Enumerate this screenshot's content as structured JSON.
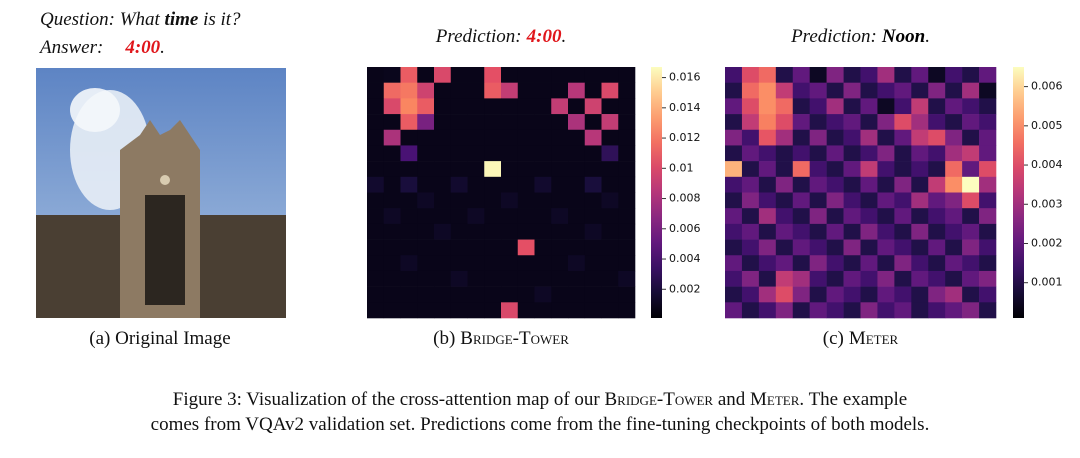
{
  "question": {
    "label": "Question:",
    "before": "What",
    "keyword": "time",
    "after": "is it?"
  },
  "answer": {
    "label": "Answer:",
    "value": "4:00",
    "end": "."
  },
  "original_caption": "(a) Original Image",
  "heatmaps": [
    {
      "prediction_label": "Prediction:",
      "prediction": "4:00",
      "prediction_color": "#e0161b",
      "end": ".",
      "caption_prefix": "(b)",
      "caption_model": "Bridge-Tower",
      "clim": [
        0.0001,
        0.0167
      ],
      "colorbar_ticks": [
        0.002,
        0.004,
        0.006,
        0.008,
        0.01,
        0.012,
        0.014,
        0.016
      ],
      "values": [
        [
          0.0008,
          0.0009,
          0.011,
          0.0008,
          0.01,
          0.0008,
          0.0008,
          0.0105,
          0.0008,
          0.0008,
          0.0008,
          0.0008,
          0.0008,
          0.0008,
          0.0008,
          0.0008
        ],
        [
          0.0008,
          0.0115,
          0.012,
          0.0095,
          0.0008,
          0.0008,
          0.0008,
          0.011,
          0.009,
          0.0008,
          0.0008,
          0.0008,
          0.0085,
          0.0008,
          0.01,
          0.0008
        ],
        [
          0.0008,
          0.01,
          0.0125,
          0.011,
          0.0008,
          0.0008,
          0.0008,
          0.0008,
          0.0008,
          0.0008,
          0.0008,
          0.009,
          0.0008,
          0.0095,
          0.0008,
          0.0008
        ],
        [
          0.0008,
          0.0008,
          0.011,
          0.006,
          0.0008,
          0.0008,
          0.0008,
          0.0008,
          0.0008,
          0.0008,
          0.0008,
          0.0008,
          0.008,
          0.0008,
          0.009,
          0.0008
        ],
        [
          0.0008,
          0.008,
          0.0008,
          0.0008,
          0.0008,
          0.0008,
          0.0008,
          0.0008,
          0.0008,
          0.0008,
          0.0008,
          0.0008,
          0.0008,
          0.0085,
          0.0008,
          0.0008
        ],
        [
          0.0008,
          0.0008,
          0.004,
          0.0008,
          0.0008,
          0.0008,
          0.0008,
          0.0008,
          0.0008,
          0.0008,
          0.0008,
          0.0008,
          0.0008,
          0.0008,
          0.003,
          0.0008
        ],
        [
          0.0008,
          0.0008,
          0.0008,
          0.0008,
          0.0008,
          0.0008,
          0.0008,
          0.0165,
          0.0008,
          0.0008,
          0.0008,
          0.0008,
          0.0008,
          0.0008,
          0.0008,
          0.0008
        ],
        [
          0.0015,
          0.0008,
          0.002,
          0.0008,
          0.0008,
          0.0015,
          0.0008,
          0.0008,
          0.0008,
          0.0008,
          0.0015,
          0.0008,
          0.0008,
          0.002,
          0.0008,
          0.0008
        ],
        [
          0.0008,
          0.0008,
          0.0008,
          0.0012,
          0.0008,
          0.0008,
          0.0008,
          0.0008,
          0.0012,
          0.0008,
          0.0008,
          0.0008,
          0.0008,
          0.0008,
          0.0012,
          0.0008
        ],
        [
          0.0008,
          0.0012,
          0.0008,
          0.0008,
          0.0008,
          0.0008,
          0.0012,
          0.0008,
          0.0008,
          0.0008,
          0.0008,
          0.0012,
          0.0008,
          0.0008,
          0.0008,
          0.0008
        ],
        [
          0.0008,
          0.0008,
          0.0008,
          0.0008,
          0.0012,
          0.0008,
          0.0008,
          0.0008,
          0.0008,
          0.0008,
          0.0008,
          0.0008,
          0.0008,
          0.0012,
          0.0008,
          0.0008
        ],
        [
          0.0008,
          0.0008,
          0.0008,
          0.0008,
          0.0008,
          0.0008,
          0.0008,
          0.0008,
          0.0008,
          0.0105,
          0.0008,
          0.0008,
          0.0008,
          0.0008,
          0.0008,
          0.0008
        ],
        [
          0.0008,
          0.0008,
          0.0012,
          0.0008,
          0.0008,
          0.0008,
          0.0008,
          0.0008,
          0.0008,
          0.0008,
          0.0008,
          0.0008,
          0.0012,
          0.0008,
          0.0008,
          0.0008
        ],
        [
          0.0008,
          0.0008,
          0.0008,
          0.0008,
          0.0008,
          0.0012,
          0.0008,
          0.0008,
          0.0008,
          0.0008,
          0.0008,
          0.0008,
          0.0008,
          0.0008,
          0.0008,
          0.0012
        ],
        [
          0.0008,
          0.0008,
          0.0008,
          0.0008,
          0.0008,
          0.0008,
          0.0008,
          0.0008,
          0.0008,
          0.0008,
          0.0012,
          0.0008,
          0.0008,
          0.0008,
          0.0008,
          0.0008
        ],
        [
          0.0008,
          0.0008,
          0.0008,
          0.0008,
          0.0008,
          0.0008,
          0.0008,
          0.0008,
          0.01,
          0.0008,
          0.0008,
          0.0008,
          0.0008,
          0.0008,
          0.0008,
          0.0008
        ]
      ]
    },
    {
      "prediction_label": "Prediction:",
      "prediction": "Noon",
      "prediction_color": "#000000",
      "end": ".",
      "caption_prefix": "(c)",
      "caption_model": "Meter",
      "clim": [
        0.0001,
        0.0065
      ],
      "colorbar_ticks": [
        0.001,
        0.002,
        0.003,
        0.004,
        0.005,
        0.006
      ],
      "values": [
        [
          0.0015,
          0.004,
          0.0045,
          0.001,
          0.002,
          0.0005,
          0.0025,
          0.001,
          0.0015,
          0.003,
          0.001,
          0.002,
          0.0005,
          0.0015,
          0.001,
          0.002
        ],
        [
          0.001,
          0.0045,
          0.005,
          0.0035,
          0.0015,
          0.002,
          0.001,
          0.0025,
          0.001,
          0.0015,
          0.002,
          0.001,
          0.0025,
          0.001,
          0.003,
          0.0005
        ],
        [
          0.002,
          0.004,
          0.005,
          0.0045,
          0.001,
          0.0015,
          0.003,
          0.001,
          0.002,
          0.0005,
          0.0015,
          0.0035,
          0.001,
          0.002,
          0.0015,
          0.001
        ],
        [
          0.001,
          0.0035,
          0.0048,
          0.004,
          0.002,
          0.001,
          0.0015,
          0.002,
          0.001,
          0.0025,
          0.004,
          0.003,
          0.0015,
          0.001,
          0.002,
          0.0015
        ],
        [
          0.0025,
          0.0015,
          0.0042,
          0.003,
          0.001,
          0.0025,
          0.001,
          0.0015,
          0.003,
          0.001,
          0.002,
          0.0035,
          0.004,
          0.0025,
          0.001,
          0.002
        ],
        [
          0.001,
          0.002,
          0.0015,
          0.001,
          0.0015,
          0.001,
          0.002,
          0.001,
          0.0015,
          0.0025,
          0.001,
          0.002,
          0.0015,
          0.003,
          0.0035,
          0.002
        ],
        [
          0.0055,
          0.001,
          0.002,
          0.001,
          0.0045,
          0.0015,
          0.001,
          0.002,
          0.0035,
          0.0015,
          0.001,
          0.0015,
          0.001,
          0.0045,
          0.002,
          0.004
        ],
        [
          0.0015,
          0.002,
          0.001,
          0.0025,
          0.001,
          0.002,
          0.0015,
          0.001,
          0.002,
          0.001,
          0.0025,
          0.001,
          0.0035,
          0.005,
          0.0065,
          0.003
        ],
        [
          0.001,
          0.0025,
          0.0015,
          0.001,
          0.002,
          0.001,
          0.0025,
          0.0015,
          0.001,
          0.002,
          0.0015,
          0.003,
          0.002,
          0.0025,
          0.004,
          0.0015
        ],
        [
          0.002,
          0.001,
          0.003,
          0.0015,
          0.001,
          0.0025,
          0.001,
          0.002,
          0.0015,
          0.001,
          0.002,
          0.001,
          0.0015,
          0.002,
          0.001,
          0.0025
        ],
        [
          0.0015,
          0.002,
          0.001,
          0.002,
          0.0015,
          0.001,
          0.002,
          0.001,
          0.0025,
          0.0015,
          0.001,
          0.0025,
          0.001,
          0.0015,
          0.002,
          0.001
        ],
        [
          0.001,
          0.0015,
          0.0025,
          0.001,
          0.002,
          0.0015,
          0.001,
          0.0025,
          0.001,
          0.002,
          0.0015,
          0.001,
          0.002,
          0.001,
          0.0025,
          0.0015
        ],
        [
          0.002,
          0.001,
          0.0015,
          0.002,
          0.001,
          0.0025,
          0.0015,
          0.001,
          0.002,
          0.001,
          0.0025,
          0.0015,
          0.001,
          0.002,
          0.0015,
          0.001
        ],
        [
          0.0015,
          0.0025,
          0.001,
          0.0035,
          0.003,
          0.0015,
          0.001,
          0.002,
          0.0015,
          0.0025,
          0.001,
          0.002,
          0.0015,
          0.001,
          0.002,
          0.0025
        ],
        [
          0.001,
          0.0015,
          0.003,
          0.004,
          0.0025,
          0.001,
          0.002,
          0.0015,
          0.001,
          0.002,
          0.0015,
          0.001,
          0.0025,
          0.003,
          0.001,
          0.0015
        ],
        [
          0.002,
          0.001,
          0.0015,
          0.0025,
          0.001,
          0.002,
          0.0015,
          0.001,
          0.0025,
          0.0015,
          0.002,
          0.001,
          0.0015,
          0.002,
          0.0025,
          0.001
        ]
      ]
    }
  ],
  "figure_caption": {
    "line1": [
      "Figure 3: Visualization of the cross-attention map of our",
      "Bridge-Tower",
      "and",
      "Meter",
      ". The example"
    ],
    "line2": "comes from VQAv2 validation set. Predictions come from the fine-tuning checkpoints of both models."
  }
}
